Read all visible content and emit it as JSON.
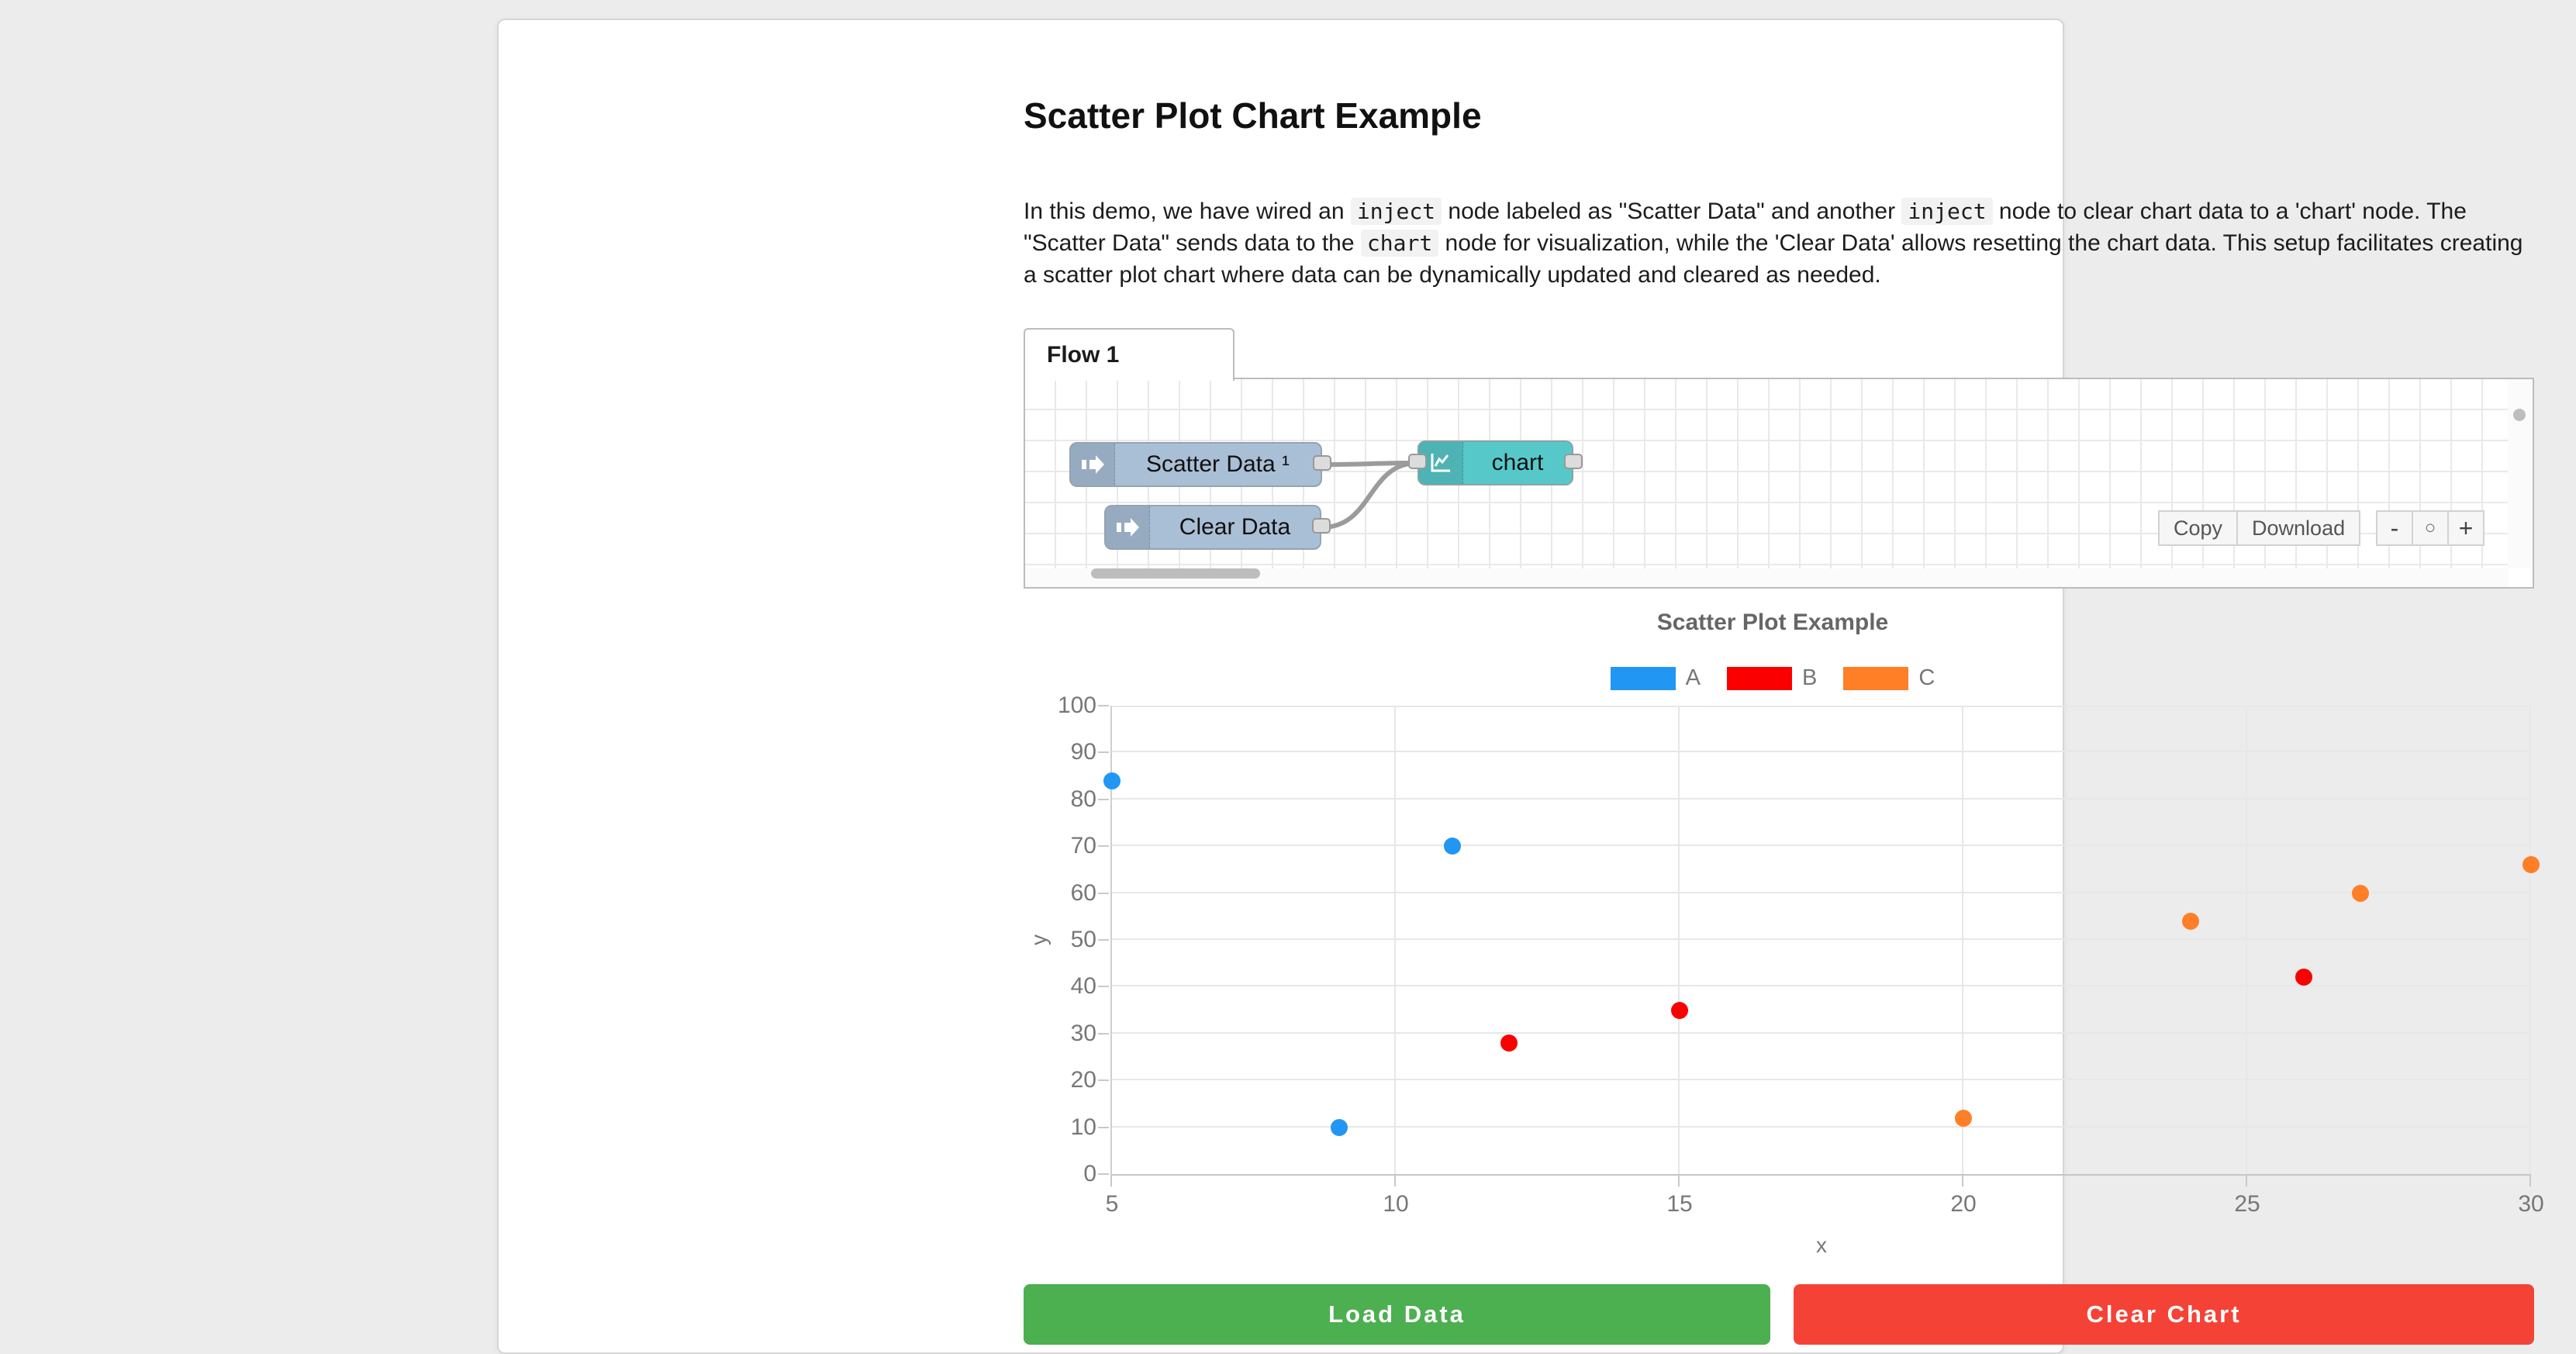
{
  "page": {
    "background": "#ececec"
  },
  "header": {
    "title": "Scatter Plot Chart Example"
  },
  "description": {
    "segments": [
      {
        "type": "text",
        "value": "In this demo, we have wired an "
      },
      {
        "type": "code",
        "value": "inject"
      },
      {
        "type": "text",
        "value": " node labeled as \"Scatter Data\" and another "
      },
      {
        "type": "code",
        "value": "inject"
      },
      {
        "type": "text",
        "value": " node to clear chart data to a 'chart' node. The \"Scatter Data\" sends data to the "
      },
      {
        "type": "code",
        "value": "chart"
      },
      {
        "type": "text",
        "value": " node for visualization, while the 'Clear Data' allows resetting the chart data. This setup facilitates creating a scatter plot chart where data can be dynamically updated and cleared as needed."
      }
    ]
  },
  "flow": {
    "tab_label": "Flow 1",
    "nodes": [
      {
        "label": "Scatter Data ¹",
        "type": "inject"
      },
      {
        "label": "Clear Data",
        "type": "inject"
      },
      {
        "label": "chart",
        "type": "chart"
      }
    ],
    "node_colors": {
      "inject": "#a9bfd6",
      "chart": "#57c8c9"
    },
    "toolbar": {
      "copy_label": "Copy",
      "download_label": "Download"
    },
    "zoom_controls": {
      "zoom_out": "-",
      "zoom_reset": "○",
      "zoom_in": "+"
    }
  },
  "chart_data": {
    "type": "scatter",
    "title": "Scatter Plot Example",
    "xlabel": "x",
    "ylabel": "y",
    "xlim": [
      5,
      30
    ],
    "ylim": [
      0,
      100
    ],
    "x_ticks": [
      5,
      10,
      15,
      20,
      25,
      30
    ],
    "y_ticks": [
      0,
      10,
      20,
      30,
      40,
      50,
      60,
      70,
      80,
      90,
      100
    ],
    "grid": true,
    "legend_position": "top",
    "series": [
      {
        "name": "A",
        "color": "#2196f3",
        "points": [
          [
            5,
            84
          ],
          [
            9,
            10
          ],
          [
            11,
            70
          ]
        ]
      },
      {
        "name": "B",
        "color": "#fa0000",
        "points": [
          [
            12,
            28
          ],
          [
            15,
            35
          ],
          [
            26,
            42
          ]
        ]
      },
      {
        "name": "C",
        "color": "#ff7f27",
        "points": [
          [
            20,
            12
          ],
          [
            24,
            54
          ],
          [
            27,
            60
          ],
          [
            30,
            66
          ]
        ]
      }
    ]
  },
  "actions": {
    "load_label": "Load Data",
    "load_color": "#4caf50",
    "clear_label": "Clear Chart",
    "clear_color": "#f44336"
  }
}
